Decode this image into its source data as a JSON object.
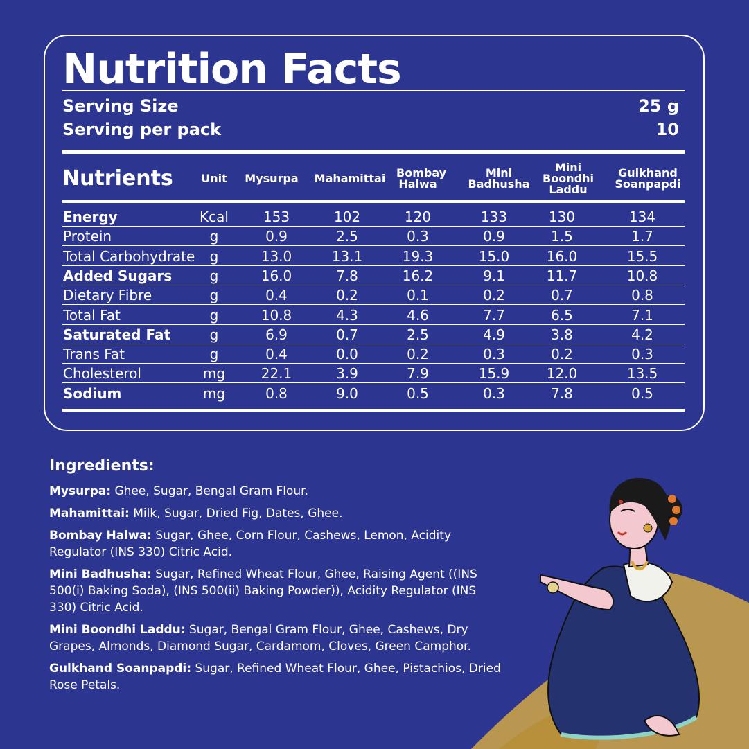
{
  "title": "Nutrition Facts",
  "serving": {
    "size_label": "Serving Size",
    "size_value": "25 g",
    "per_pack_label": "Serving per pack",
    "per_pack_value": "10"
  },
  "table": {
    "nutrients_label": "Nutrients",
    "unit_label": "Unit",
    "columns": [
      "Mysurpa",
      "Mahamittai",
      "Bombay Halwa",
      "Mini Badhusha",
      "Mini Boondhi Laddu",
      "Gulkhand Soanpapdi"
    ],
    "rows": [
      {
        "name": "Energy",
        "bold": true,
        "unit": "Kcal",
        "values": [
          "153",
          "102",
          "120",
          "133",
          "130",
          "134"
        ]
      },
      {
        "name": "Protein",
        "bold": false,
        "unit": "g",
        "values": [
          "0.9",
          "2.5",
          "0.3",
          "0.9",
          "1.5",
          "1.7"
        ]
      },
      {
        "name": "Total Carbohydrate",
        "bold": false,
        "unit": "g",
        "values": [
          "13.0",
          "13.1",
          "19.3",
          "15.0",
          "16.0",
          "15.5"
        ]
      },
      {
        "name": "Added Sugars",
        "bold": true,
        "unit": "g",
        "values": [
          "16.0",
          "7.8",
          "16.2",
          "9.1",
          "11.7",
          "10.8"
        ]
      },
      {
        "name": "Dietary Fibre",
        "bold": false,
        "unit": "g",
        "values": [
          "0.4",
          "0.2",
          "0.1",
          "0.2",
          "0.7",
          "0.8"
        ]
      },
      {
        "name": "Total Fat",
        "bold": false,
        "unit": "g",
        "values": [
          "10.8",
          "4.3",
          "4.6",
          "7.7",
          "6.5",
          "7.1"
        ]
      },
      {
        "name": "Saturated Fat",
        "bold": true,
        "unit": "g",
        "values": [
          "6.9",
          "0.7",
          "2.5",
          "4.9",
          "3.8",
          "4.2"
        ]
      },
      {
        "name": "Trans Fat",
        "bold": false,
        "unit": "g",
        "values": [
          "0.4",
          "0.0",
          "0.2",
          "0.3",
          "0.2",
          "0.3"
        ]
      },
      {
        "name": "Cholesterol",
        "bold": false,
        "unit": "mg",
        "values": [
          "22.1",
          "3.9",
          "7.9",
          "15.9",
          "12.0",
          "13.5"
        ]
      },
      {
        "name": "Sodium",
        "bold": true,
        "unit": "mg",
        "values": [
          "0.8",
          "9.0",
          "0.5",
          "0.3",
          "7.8",
          "0.5"
        ]
      }
    ]
  },
  "ingredients": {
    "heading": "Ingredients:",
    "items": [
      {
        "name": "Mysurpa:",
        "text": " Ghee, Sugar, Bengal Gram Flour."
      },
      {
        "name": "Mahamittai:",
        "text": " Milk, Sugar, Dried Fig, Dates, Ghee."
      },
      {
        "name": "Bombay Halwa:",
        "text": " Sugar, Ghee, Corn Flour, Cashews,  Lemon, Acidity Regulator (INS 330) Citric Acid."
      },
      {
        "name": "Mini Badhusha:",
        "text": " Sugar, Refined Wheat Flour, Ghee, Raising Agent ((INS 500(i) Baking Soda), (INS 500(ii) Baking Powder)), Acidity Regulator (INS 330) Citric Acid."
      },
      {
        "name": "Mini Boondhi Laddu:",
        "text": " Sugar, Bengal Gram Flour, Ghee, Cashews, Dry Grapes, Almonds, Diamond Sugar, Cardamom, Cloves, Green Camphor."
      },
      {
        "name": "Gulkhand Soanpapdi:",
        "text": " Sugar, Refined Wheat Flour, Ghee, Pistachios,  Dried Rose  Petals."
      }
    ]
  },
  "colors": {
    "background": "#2c3590",
    "gold": "#c9a24a",
    "saree": "#24336f",
    "skin": "#f3c9cf"
  }
}
